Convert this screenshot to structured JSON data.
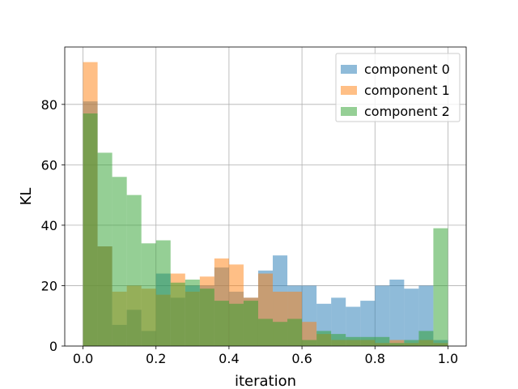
{
  "chart_data": {
    "type": "bar",
    "subtype": "overlapping-histogram",
    "title": "",
    "xlabel": "iteration",
    "ylabel": "KL",
    "xlim": [
      -0.05,
      1.05
    ],
    "ylim": [
      0,
      99
    ],
    "xticks": [
      0.0,
      0.2,
      0.4,
      0.6,
      0.8,
      1.0
    ],
    "xtick_labels": [
      "0.0",
      "0.2",
      "0.4",
      "0.6",
      "0.8",
      "1.0"
    ],
    "yticks": [
      0,
      20,
      40,
      60,
      80
    ],
    "ytick_labels": [
      "0",
      "20",
      "40",
      "60",
      "80"
    ],
    "grid": true,
    "legend_position": "top-right",
    "bin_edges": [
      0.0,
      0.04,
      0.08,
      0.12,
      0.16,
      0.2,
      0.24,
      0.28,
      0.32,
      0.36,
      0.4,
      0.44,
      0.48,
      0.52,
      0.56,
      0.6,
      0.64,
      0.68,
      0.72,
      0.76,
      0.8,
      0.84,
      0.88,
      0.92,
      0.96,
      1.0
    ],
    "series": [
      {
        "name": "component 0",
        "color": "#1f77b4",
        "values": [
          81,
          33,
          7,
          12,
          5,
          24,
          16,
          20,
          20,
          26,
          18,
          16,
          25,
          30,
          20,
          20,
          14,
          16,
          13,
          15,
          20,
          22,
          19,
          20,
          2
        ]
      },
      {
        "name": "component 1",
        "color": "#ff7f0e",
        "values": [
          94,
          33,
          18,
          20,
          19,
          17,
          24,
          18,
          23,
          29,
          27,
          16,
          24,
          18,
          18,
          8,
          4,
          2,
          2,
          2,
          1,
          2,
          1,
          2,
          1
        ]
      },
      {
        "name": "component 2",
        "color": "#2ca02c",
        "values": [
          77,
          64,
          56,
          50,
          34,
          35,
          21,
          22,
          19,
          15,
          14,
          15,
          9,
          8,
          9,
          2,
          5,
          4,
          3,
          3,
          3,
          1,
          2,
          5,
          39
        ]
      }
    ],
    "alpha": 0.5
  }
}
